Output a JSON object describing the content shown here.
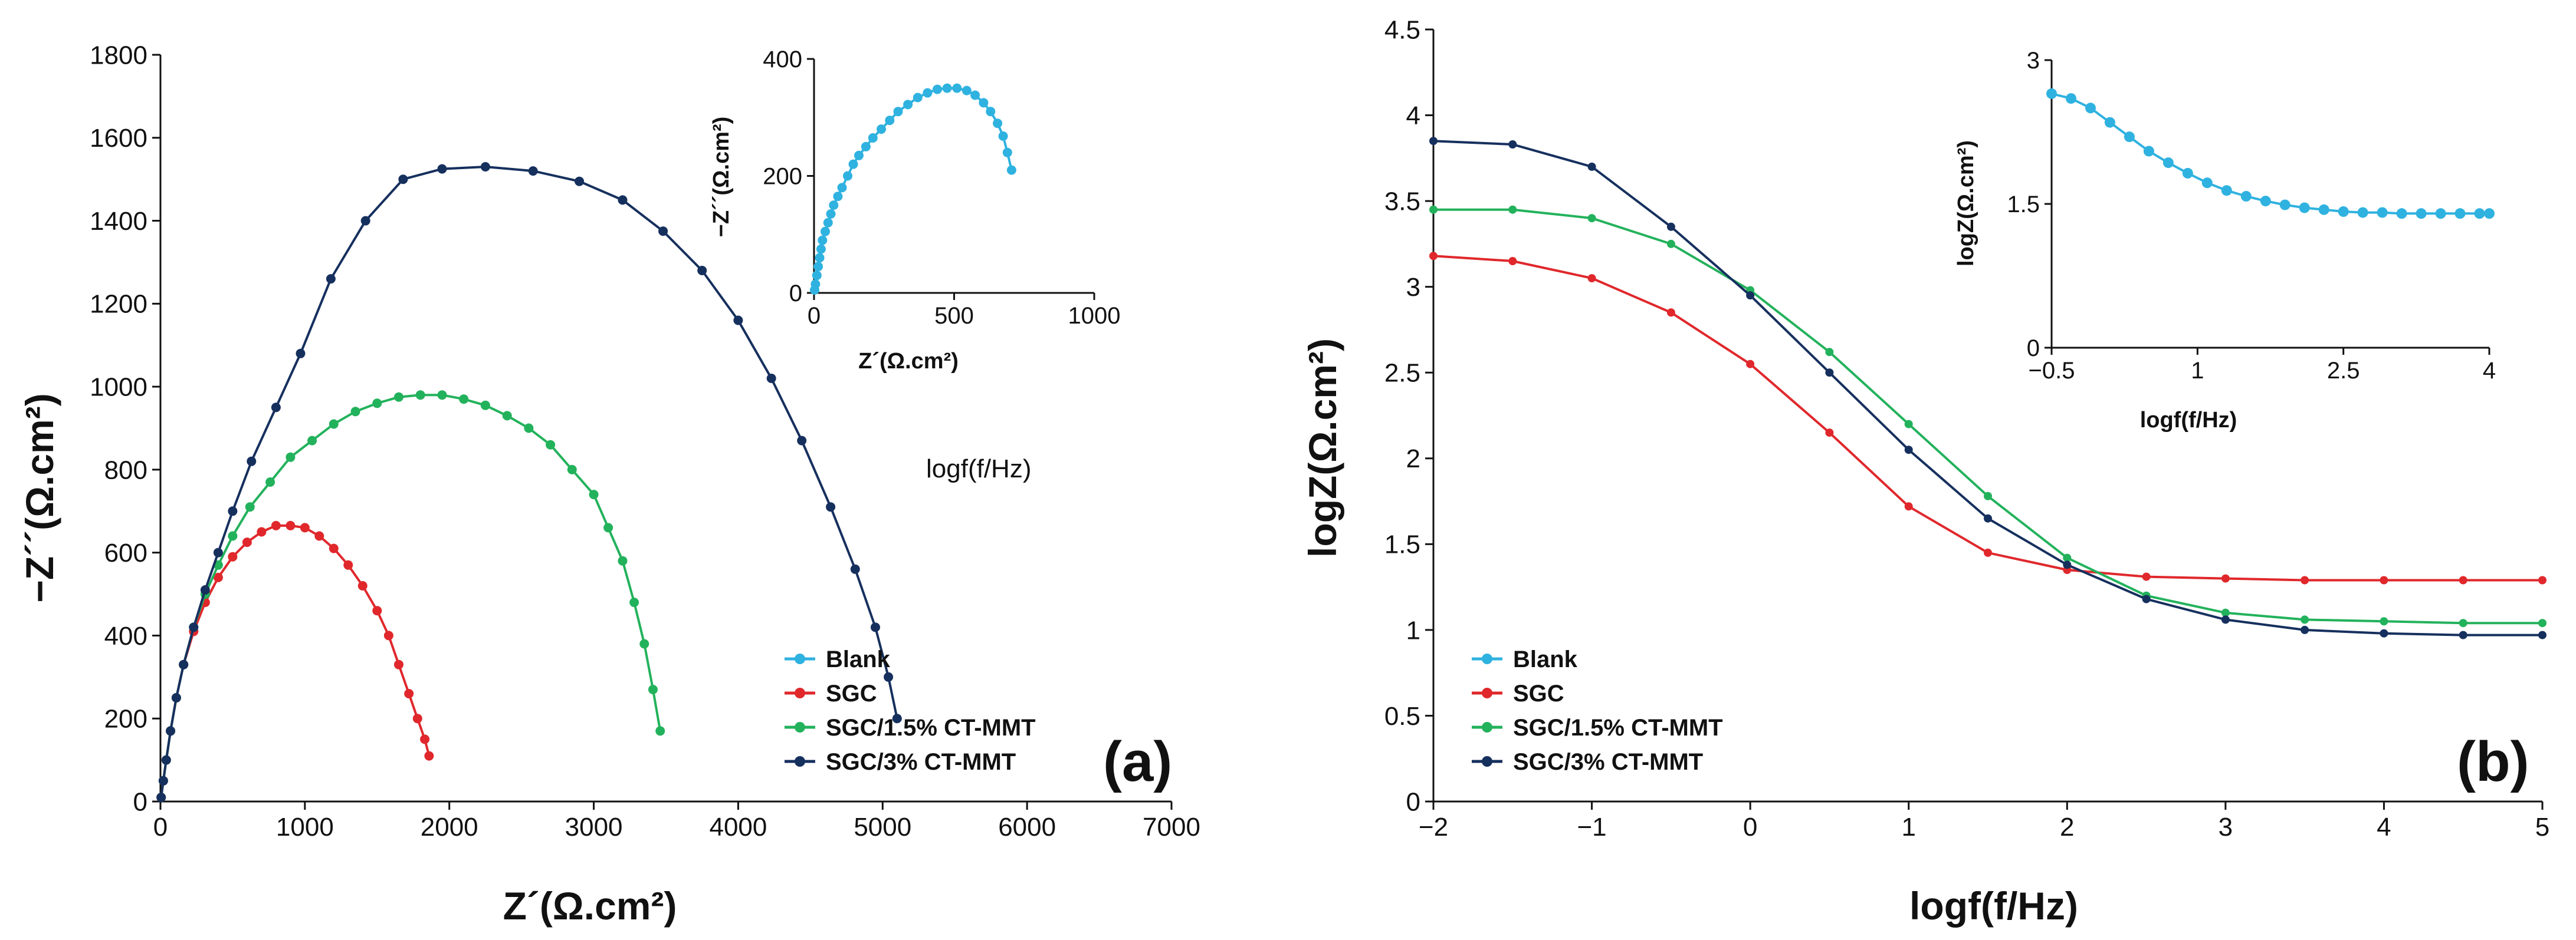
{
  "colors": {
    "Blank": "#2fb2e0",
    "SGC": "#e0282c",
    "SGC/1.5% CT-MMT": "#23b25c",
    "SGC/3% CT-MMT": "#16305e"
  },
  "chart_data": [
    {
      "id": "a",
      "type": "scatter",
      "title": "",
      "panel_label": "(a)",
      "xlabel": "Z´(Ω.cm²)",
      "ylabel": "−Z´´(Ω.cm²)",
      "xlim": [
        0,
        7000
      ],
      "ylim": [
        0,
        1800
      ],
      "x_ticks": [
        "0",
        "1000",
        "2000",
        "3000",
        "4000",
        "5000",
        "6000",
        "7000"
      ],
      "y_ticks": [
        "0",
        "200",
        "400",
        "600",
        "800",
        "1000",
        "1200",
        "1400",
        "1600",
        "1800"
      ],
      "stray_text": "logf(f/Hz)",
      "legend": [
        "Blank",
        "SGC",
        "SGC/1.5% CT-MMT",
        "SGC/3% CT-MMT"
      ],
      "series": [
        {
          "name": "SGC",
          "x": [
            5,
            20,
            40,
            70,
            110,
            160,
            230,
            310,
            400,
            500,
            600,
            700,
            800,
            900,
            1000,
            1100,
            1200,
            1300,
            1400,
            1500,
            1580,
            1650,
            1720,
            1780,
            1830,
            1860
          ],
          "y": [
            10,
            50,
            100,
            170,
            250,
            330,
            410,
            480,
            540,
            590,
            625,
            650,
            665,
            665,
            660,
            640,
            610,
            570,
            520,
            460,
            400,
            330,
            260,
            200,
            150,
            110
          ]
        },
        {
          "name": "SGC/1.5% CT-MMT",
          "x": [
            5,
            20,
            40,
            70,
            110,
            160,
            230,
            310,
            400,
            500,
            620,
            760,
            900,
            1050,
            1200,
            1350,
            1500,
            1650,
            1800,
            1950,
            2100,
            2250,
            2400,
            2550,
            2700,
            2850,
            3000,
            3100,
            3200,
            3280,
            3350,
            3410,
            3460
          ],
          "y": [
            10,
            50,
            100,
            170,
            250,
            330,
            420,
            500,
            570,
            640,
            710,
            770,
            830,
            870,
            910,
            940,
            960,
            975,
            980,
            980,
            970,
            955,
            930,
            900,
            860,
            800,
            740,
            660,
            580,
            480,
            380,
            270,
            170
          ]
        },
        {
          "name": "SGC/3% CT-MMT",
          "x": [
            5,
            20,
            40,
            70,
            110,
            160,
            230,
            310,
            400,
            500,
            630,
            800,
            970,
            1180,
            1420,
            1680,
            1950,
            2250,
            2580,
            2900,
            3200,
            3480,
            3750,
            4000,
            4230,
            4440,
            4640,
            4810,
            4950,
            5040,
            5100
          ],
          "y": [
            10,
            50,
            100,
            170,
            250,
            330,
            420,
            510,
            600,
            700,
            820,
            950,
            1080,
            1260,
            1400,
            1500,
            1525,
            1530,
            1520,
            1495,
            1450,
            1375,
            1280,
            1160,
            1020,
            870,
            710,
            560,
            420,
            300,
            200
          ]
        }
      ],
      "inset": {
        "type": "scatter",
        "xlabel": "Z´(Ω.cm²)",
        "ylabel": "−Z´´(Ω.cm²)",
        "xlim": [
          0,
          1000
        ],
        "ylim": [
          0,
          400
        ],
        "x_ticks": [
          "0",
          "500",
          "1000"
        ],
        "y_ticks": [
          "0",
          "200",
          "400"
        ],
        "series": [
          {
            "name": "Blank",
            "x": [
              2,
              5,
              10,
              15,
              20,
              25,
              30,
              40,
              50,
              60,
              70,
              85,
              100,
              120,
              140,
              160,
              185,
              210,
              240,
              270,
              300,
              335,
              370,
              405,
              440,
              475,
              510,
              545,
              575,
              605,
              630,
              655,
              675,
              690,
              705
            ],
            "y": [
              5,
              15,
              30,
              45,
              60,
              75,
              90,
              105,
              120,
              135,
              150,
              165,
              180,
              200,
              220,
              235,
              250,
              265,
              280,
              295,
              310,
              322,
              334,
              342,
              348,
              350,
              350,
              346,
              338,
              325,
              310,
              290,
              268,
              240,
              210
            ]
          }
        ]
      }
    },
    {
      "id": "b",
      "type": "line",
      "title": "",
      "panel_label": "(b)",
      "xlabel": "logf(f/Hz)",
      "ylabel": "logZ(Ω.cm²)",
      "xlim": [
        -2,
        5
      ],
      "ylim": [
        0,
        4.5
      ],
      "x_ticks": [
        "−2",
        "−1",
        "0",
        "1",
        "2",
        "3",
        "4",
        "5"
      ],
      "y_ticks": [
        "0",
        "0.5",
        "1",
        "1.5",
        "2",
        "2.5",
        "3",
        "3.5",
        "4",
        "4.5"
      ],
      "legend": [
        "Blank",
        "SGC",
        "SGC/1.5% CT-MMT",
        "SGC/3% CT-MMT"
      ],
      "series": [
        {
          "name": "SGC",
          "x": [
            -2,
            -1.5,
            -1,
            -0.5,
            0,
            0.5,
            1,
            1.5,
            2,
            2.5,
            3,
            3.5,
            4,
            4.5,
            5
          ],
          "y": [
            3.18,
            3.15,
            3.05,
            2.85,
            2.55,
            2.15,
            1.72,
            1.45,
            1.35,
            1.31,
            1.3,
            1.29,
            1.29,
            1.29,
            1.29
          ]
        },
        {
          "name": "SGC/1.5% CT-MMT",
          "x": [
            -2,
            -1.5,
            -1,
            -0.5,
            0,
            0.5,
            1,
            1.5,
            2,
            2.5,
            3,
            3.5,
            4,
            4.5,
            5
          ],
          "y": [
            3.45,
            3.45,
            3.4,
            3.25,
            2.98,
            2.62,
            2.2,
            1.78,
            1.42,
            1.2,
            1.1,
            1.06,
            1.05,
            1.04,
            1.04
          ]
        },
        {
          "name": "SGC/3% CT-MMT",
          "x": [
            -2,
            -1.5,
            -1,
            -0.5,
            0,
            0.5,
            1,
            1.5,
            2,
            2.5,
            3,
            3.5,
            4,
            4.5,
            5
          ],
          "y": [
            3.85,
            3.83,
            3.7,
            3.35,
            2.95,
            2.5,
            2.05,
            1.65,
            1.38,
            1.18,
            1.06,
            1.0,
            0.98,
            0.97,
            0.97
          ]
        }
      ],
      "inset": {
        "type": "line",
        "xlabel": "logf(f/Hz)",
        "ylabel": "logZ(Ω.cm²)",
        "xlim": [
          -0.5,
          4
        ],
        "ylim": [
          0,
          3
        ],
        "x_ticks": [
          "−0.5",
          "1",
          "2.5",
          "4"
        ],
        "y_ticks": [
          "0",
          "1.5",
          "3"
        ],
        "series": [
          {
            "name": "Blank",
            "x": [
              -0.5,
              -0.3,
              -0.1,
              0.1,
              0.3,
              0.5,
              0.7,
              0.9,
              1.1,
              1.3,
              1.5,
              1.7,
              1.9,
              2.1,
              2.3,
              2.5,
              2.7,
              2.9,
              3.1,
              3.3,
              3.5,
              3.7,
              3.9,
              4.0
            ],
            "y": [
              2.65,
              2.6,
              2.5,
              2.35,
              2.2,
              2.05,
              1.93,
              1.82,
              1.72,
              1.64,
              1.58,
              1.53,
              1.49,
              1.46,
              1.44,
              1.42,
              1.41,
              1.41,
              1.4,
              1.4,
              1.4,
              1.4,
              1.4,
              1.4
            ]
          }
        ]
      }
    }
  ]
}
